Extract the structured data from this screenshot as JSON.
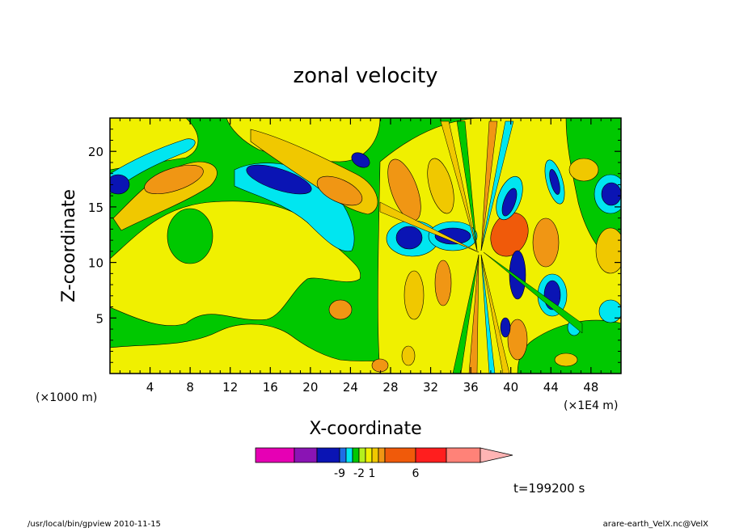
{
  "chart_data": {
    "type": "heatmap",
    "title": "zonal velocity",
    "xlabel": "X-coordinate",
    "ylabel": "Z-coordinate",
    "x_unit": "(×1E4 m)",
    "y_unit": "(×1000 m)",
    "xlim": [
      0,
      51
    ],
    "ylim": [
      0,
      23
    ],
    "x_ticks": [
      4,
      8,
      12,
      16,
      20,
      24,
      28,
      32,
      36,
      40,
      44,
      48
    ],
    "y_ticks": [
      5,
      10,
      15,
      20
    ],
    "colorbar": {
      "colors": [
        "#e600b4",
        "#8a14b4",
        "#0a14b4",
        "#1e6ee6",
        "#00e6f0",
        "#00c800",
        "#b4f01e",
        "#f0f000",
        "#f0c800",
        "#f09614",
        "#f05a0a",
        "#ff1e1e",
        "#ff8278",
        "#ffb4b4"
      ],
      "tick_labels": [
        {
          "label": "-9",
          "index": 2
        },
        {
          "label": "-2",
          "index": 5
        },
        {
          "label": "1",
          "index": 7
        },
        {
          "label": "6",
          "index": 10
        }
      ]
    },
    "time_label": "t=199200 s",
    "footer_left": "/usr/local/bin/gpview   2010-11-15",
    "footer_right": "arare-earth_VelX.nc@VelX"
  }
}
